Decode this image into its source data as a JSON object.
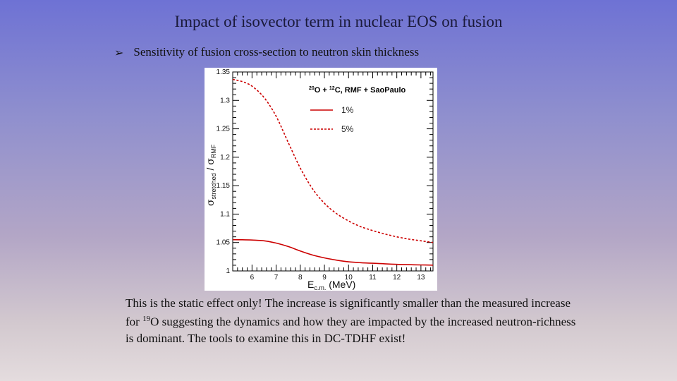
{
  "slide": {
    "title": "Impact of isovector term in nuclear EOS on fusion",
    "bullet": "Sensitivity of fusion cross-section to neutron skin thickness",
    "note": {
      "part1": "This is the static effect only! The increase is significantly smaller than the measured increase for ",
      "sup": "19",
      "part2": "O suggesting the dynamics and how they are impacted by the increased neutron-richness is dominant. The tools to examine this in DC-TDHF exist!"
    }
  },
  "chart_data": {
    "type": "line",
    "title_parts": {
      "sup1": "20",
      "a": "O + ",
      "sup2": "12",
      "b": "C, RMF + SaoPaulo"
    },
    "xlabel": {
      "main": "E",
      "sub": "c.m.",
      "unit": " (MeV)"
    },
    "ylabel": {
      "sigma1": "σ",
      "sub1": "stretched",
      "sep": " / ",
      "sigma2": "σ",
      "sub2": "RMF"
    },
    "xlim": [
      5.2,
      13.5
    ],
    "ylim": [
      1.0,
      1.35
    ],
    "xticks": [
      6,
      7,
      8,
      9,
      10,
      11,
      12,
      13
    ],
    "yticks": [
      1,
      1.05,
      1.1,
      1.15,
      1.2,
      1.25,
      1.3,
      1.35
    ],
    "ytick_labels": [
      "1",
      "1.05",
      "1.1",
      "1.15",
      "1.2",
      "1.25",
      "1.3",
      "1.35"
    ],
    "legend_position": "top-right",
    "series": [
      {
        "name": "1%",
        "color": "#cc0000",
        "style": "solid",
        "x": [
          5.2,
          5.6,
          6.0,
          6.5,
          7.0,
          7.5,
          8.0,
          8.5,
          9.0,
          9.5,
          10.0,
          10.5,
          11.0,
          11.5,
          12.0,
          12.5,
          13.0,
          13.5
        ],
        "y": [
          1.055,
          1.0548,
          1.0543,
          1.053,
          1.049,
          1.043,
          1.035,
          1.028,
          1.023,
          1.019,
          1.016,
          1.0145,
          1.0135,
          1.0125,
          1.0115,
          1.011,
          1.0105,
          1.0102
        ]
      },
      {
        "name": "5%",
        "color": "#cc0000",
        "style": "dashed",
        "x": [
          5.2,
          5.6,
          6.0,
          6.5,
          7.0,
          7.5,
          8.0,
          8.5,
          9.0,
          9.5,
          10.0,
          10.5,
          11.0,
          11.5,
          12.0,
          12.5,
          13.0,
          13.5
        ],
        "y": [
          1.337,
          1.333,
          1.325,
          1.305,
          1.272,
          1.226,
          1.181,
          1.145,
          1.119,
          1.101,
          1.088,
          1.078,
          1.071,
          1.065,
          1.06,
          1.056,
          1.053,
          1.05
        ]
      }
    ]
  }
}
